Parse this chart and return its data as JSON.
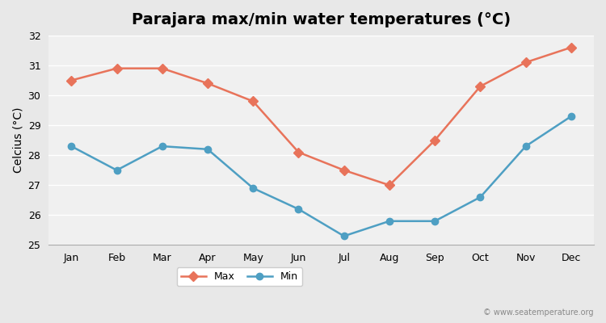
{
  "title": "Parajara max/min water temperatures (°C)",
  "ylabel": "Celcius (°C)",
  "months": [
    "Jan",
    "Feb",
    "Mar",
    "Apr",
    "May",
    "Jun",
    "Jul",
    "Aug",
    "Sep",
    "Oct",
    "Nov",
    "Dec"
  ],
  "max_temps": [
    30.5,
    30.9,
    30.9,
    30.4,
    29.8,
    28.1,
    27.5,
    27.0,
    28.5,
    30.3,
    31.1,
    31.6
  ],
  "min_temps": [
    28.3,
    27.5,
    28.3,
    28.2,
    26.9,
    26.2,
    25.3,
    25.8,
    25.8,
    26.6,
    28.3,
    29.3
  ],
  "max_color": "#E8735A",
  "min_color": "#4E9FC3",
  "bg_color": "#E8E8E8",
  "plot_bg_color": "#F0F0F0",
  "ylim": [
    25,
    32
  ],
  "yticks": [
    25,
    26,
    27,
    28,
    29,
    30,
    31,
    32
  ],
  "legend_labels": [
    "Max",
    "Min"
  ],
  "watermark": "© www.seatemperature.org",
  "title_fontsize": 14,
  "axis_label_fontsize": 10,
  "tick_fontsize": 9
}
